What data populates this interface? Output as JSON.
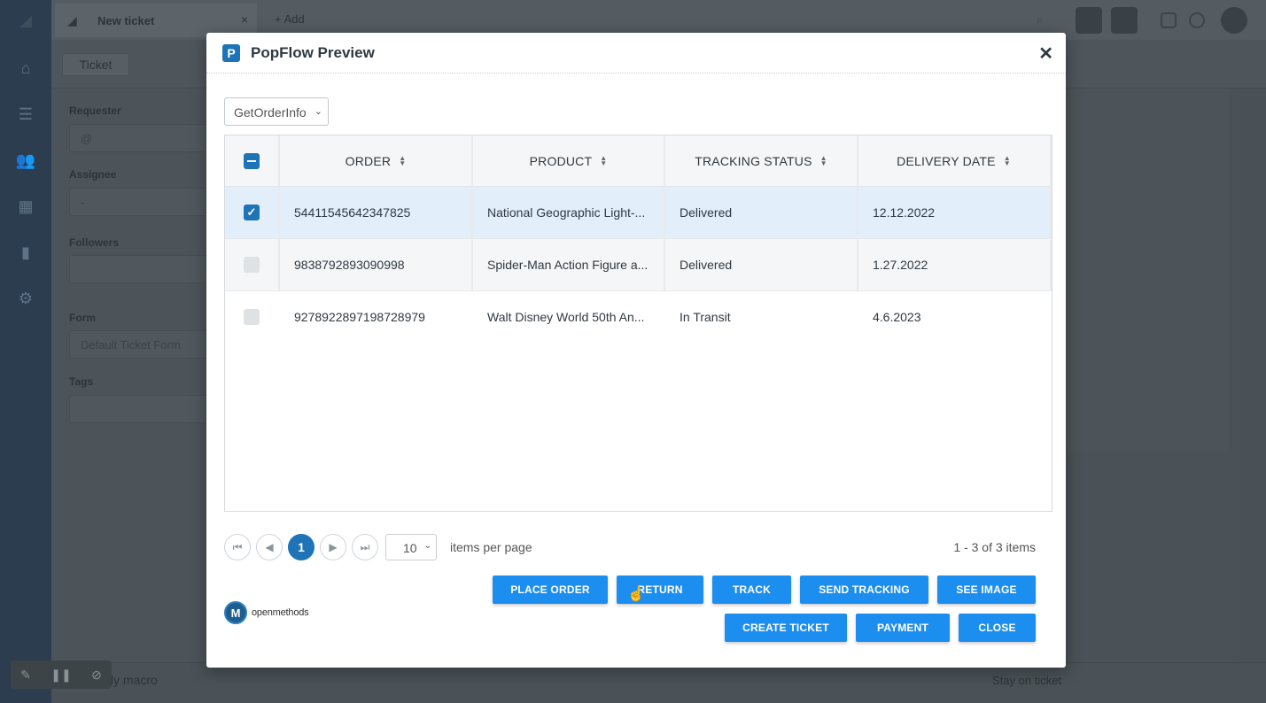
{
  "background": {
    "tab": {
      "label": "New ticket",
      "close": "×"
    },
    "add_tab": "+ Add",
    "subnav_chip": "Ticket",
    "fields": [
      {
        "label": "Requester",
        "value": "@"
      },
      {
        "label": "Assignee",
        "value": "-"
      },
      {
        "label": "Followers",
        "value": ""
      },
      {
        "label": "Form",
        "value": "Default Ticket Form"
      },
      {
        "label": "Tags",
        "value": ""
      }
    ],
    "macro": "Apply macro",
    "stay": "Stay on ticket"
  },
  "modal": {
    "title": "PopFlow Preview",
    "close": "✕",
    "logo_letter": "P",
    "selector": {
      "value": "GetOrderInfo"
    },
    "grid": {
      "columns": [
        "ORDER",
        "PRODUCT",
        "TRACKING STATUS",
        "DELIVERY DATE"
      ],
      "rows": [
        {
          "order": "54411545642347825",
          "product": "National Geographic Light-...",
          "status": "Delivered",
          "date": "12.12.2022",
          "checked": true
        },
        {
          "order": "9838792893090998",
          "product": "Spider-Man Action Figure a...",
          "status": "Delivered",
          "date": "1.27.2022",
          "checked": false
        },
        {
          "order": "9278922897198728979",
          "product": "Walt Disney World 50th An...",
          "status": "In Transit",
          "date": "4.6.2023",
          "checked": false
        }
      ]
    },
    "pager": {
      "first": "⏮",
      "prev": "◀",
      "current": "1",
      "next": "▶",
      "last": "⏭",
      "page_size": "10",
      "items_per_page": "items per page",
      "range": "1 - 3 of 3 items"
    },
    "brand": {
      "mark": "M",
      "text": "openmethods"
    },
    "buttons": {
      "place_order": "PLACE ORDER",
      "return": "RETURN",
      "track": "TRACK",
      "send_tracking": "SEND TRACKING",
      "see_image": "SEE IMAGE",
      "create_ticket": "CREATE TICKET",
      "payment": "PAYMENT",
      "close": "CLOSE"
    },
    "accent": "#1c8ef0"
  }
}
